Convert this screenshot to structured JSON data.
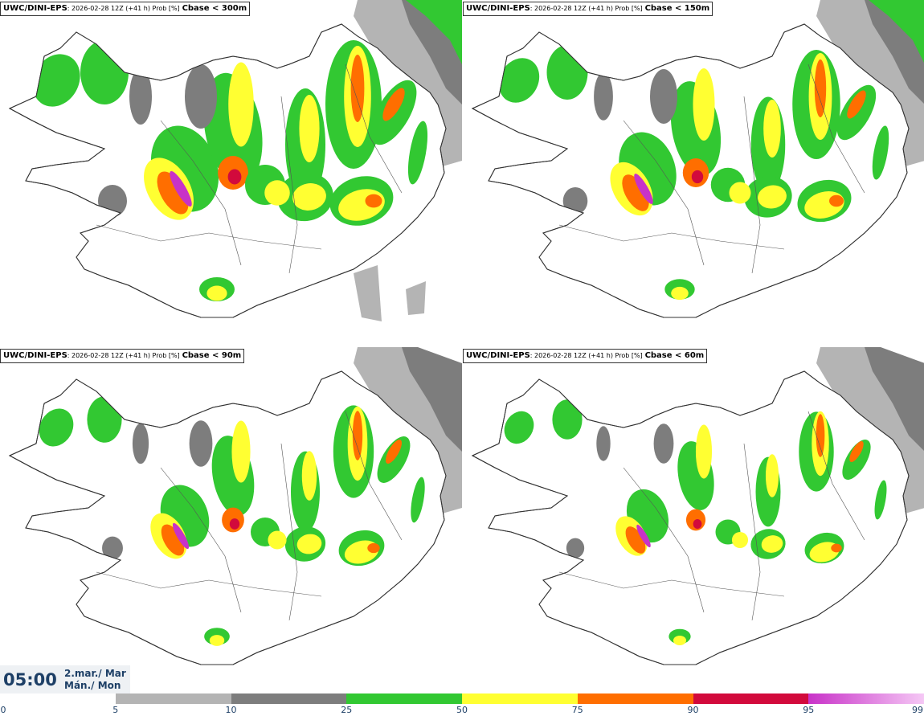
{
  "panels": [
    {
      "model": "UWC/DINI-EPS",
      "meta": ": 2026-02-28 12Z (+41 h) Prob [%]",
      "var": "Cbase < 300m"
    },
    {
      "model": "UWC/DINI-EPS",
      "meta": ": 2026-02-28 12Z (+41 h) Prob [%]",
      "var": "Cbase < 150m"
    },
    {
      "model": "UWC/DINI-EPS",
      "meta": ": 2026-02-28 12Z (+41 h) Prob [%]",
      "var": "Cbase < 90m"
    },
    {
      "model": "UWC/DINI-EPS",
      "meta": ": 2026-02-28 12Z (+41 h) Prob [%]",
      "var": "Cbase < 60m"
    }
  ],
  "time": {
    "clock": "05:00",
    "date_line1": "2.mar./ Mar",
    "date_line2": "Mán./ Mon"
  },
  "colorbar": {
    "ticks": [
      "0",
      "5",
      "10",
      "25",
      "50",
      "75",
      "90",
      "95",
      "99"
    ],
    "colors": [
      "#ffffff",
      "#b4b4b4",
      "#7d7d7d",
      "#32c832",
      "#ffff32",
      "#ff6e00",
      "#d20a3c",
      "#c832c8"
    ],
    "end_color": "#f5c8f5"
  },
  "colors": {
    "coast": "#333333",
    "gray_light": "#b4b4b4",
    "gray_dark": "#7d7d7d",
    "green": "#32c832",
    "yellow": "#ffff32",
    "orange": "#ff6e00",
    "red": "#d20a3c",
    "magenta": "#c832c8"
  }
}
